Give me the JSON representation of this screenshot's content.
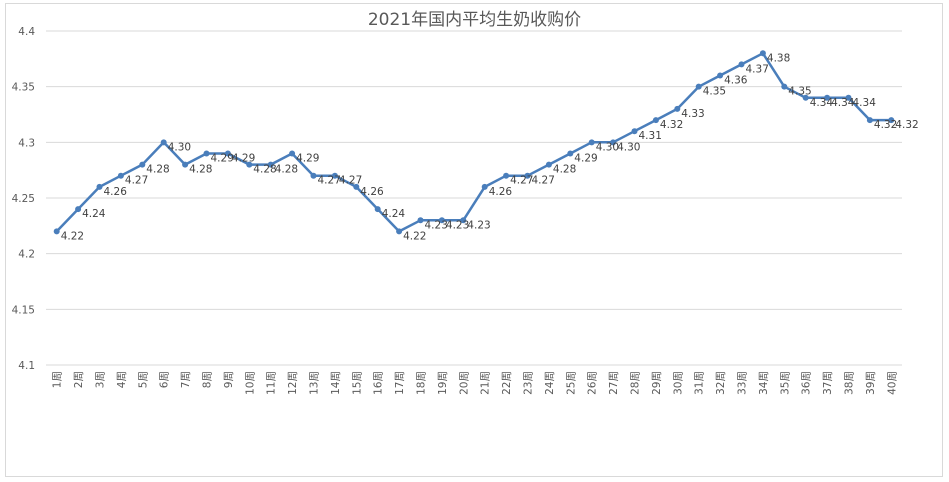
{
  "chart_data": {
    "type": "line",
    "title": "2021年国内平均生奶收购价",
    "xlabel": "",
    "ylabel": "",
    "ylim": [
      4.1,
      4.4
    ],
    "yticks": [
      "4.1",
      "4.15",
      "4.2",
      "4.25",
      "4.3",
      "4.35",
      "4.4"
    ],
    "grid": true,
    "legend": "none",
    "categories": [
      "1周",
      "2周",
      "3周",
      "4周",
      "5周",
      "6周",
      "7周",
      "8周",
      "9周",
      "10周",
      "11周",
      "12周",
      "13周",
      "14周",
      "15周",
      "16周",
      "17周",
      "18周",
      "19周",
      "20周",
      "21周",
      "22周",
      "23周",
      "24周",
      "25周",
      "26周",
      "27周",
      "28周",
      "29周",
      "30周",
      "31周",
      "32周",
      "33周",
      "34周",
      "35周",
      "36周",
      "37周",
      "38周",
      "39周",
      "40周"
    ],
    "series": [
      {
        "values": [
          4.22,
          4.24,
          4.26,
          4.27,
          4.28,
          4.3,
          4.28,
          4.29,
          4.29,
          4.28,
          4.28,
          4.29,
          4.27,
          4.27,
          4.26,
          4.24,
          4.22,
          4.23,
          4.23,
          4.23,
          4.26,
          4.27,
          4.27,
          4.28,
          4.29,
          4.3,
          4.3,
          4.31,
          4.32,
          4.33,
          4.35,
          4.36,
          4.37,
          4.38,
          4.35,
          4.34,
          4.34,
          4.34,
          4.32,
          4.32
        ],
        "labels": [
          "4.22",
          "4.24",
          "4.26",
          "4.27",
          "4.28",
          "4.30",
          "4.28",
          "4.29",
          "4.29",
          "4.28",
          "4.28",
          "4.29",
          "4.27",
          "4.27",
          "4.26",
          "4.24",
          "4.22",
          "4.23",
          "4.23",
          "4.23",
          "4.26",
          "4.27",
          "4.27",
          "4.28",
          "4.29",
          "4.30",
          "4.30",
          "4.31",
          "4.32",
          "4.33",
          "4.35",
          "4.36",
          "4.37",
          "4.38",
          "4.35",
          "4.34",
          "4.34",
          "4.34",
          "4.32",
          "4.32"
        ],
        "color": "#4a7ebb"
      }
    ]
  }
}
